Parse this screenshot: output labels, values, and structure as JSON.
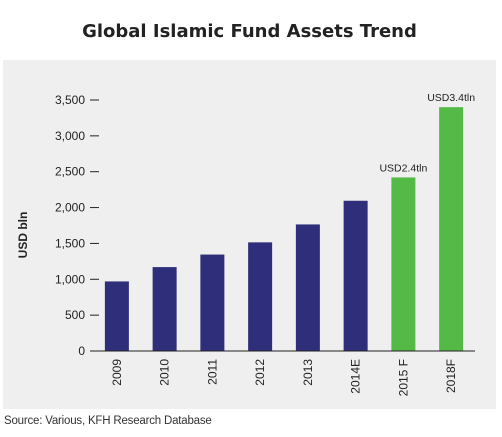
{
  "title": "Global Islamic Fund Assets Trend",
  "source": "Source: Various, KFH Research Database",
  "chart_data": {
    "type": "bar",
    "title": "Global Islamic Fund Assets Trend",
    "xlabel": "",
    "ylabel": "USD bln",
    "ylim": [
      0,
      3500
    ],
    "yticks": [
      0,
      500,
      1000,
      1500,
      2000,
      2500,
      3000,
      3500
    ],
    "ytick_labels": [
      "0",
      "500",
      "1,000",
      "1,500",
      "2,000",
      "2,500",
      "3,000",
      "3,500"
    ],
    "categories": [
      "2009",
      "2010",
      "2011",
      "2012",
      "2013",
      "2014E",
      "2015 F",
      "2018F"
    ],
    "values": [
      970,
      1170,
      1345,
      1515,
      1765,
      2095,
      2420,
      3400
    ],
    "bar_colors": [
      "#2e2e7a",
      "#2e2e7a",
      "#2e2e7a",
      "#2e2e7a",
      "#2e2e7a",
      "#2e2e7a",
      "#55b947",
      "#55b947"
    ],
    "annotations": [
      {
        "category": "2015 F",
        "text": "USD2.4tln"
      },
      {
        "category": "2018F",
        "text": "USD3.4tln"
      }
    ],
    "grid": false
  }
}
